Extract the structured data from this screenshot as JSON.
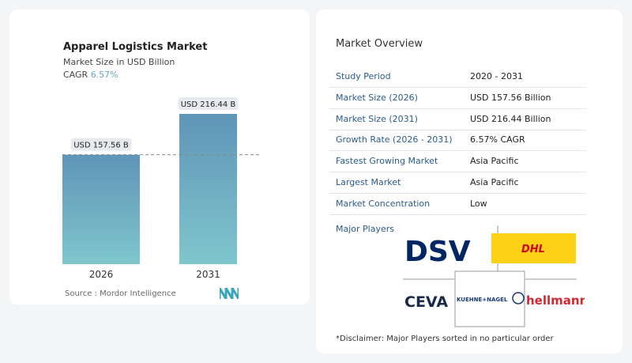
{
  "chart_data": {
    "type": "bar",
    "title": "Apparel Logistics Market",
    "subtitle": "Market Size in USD Billion",
    "cagr_label": "CAGR",
    "cagr_value": "6.57%",
    "categories": [
      "2026",
      "2031"
    ],
    "values": [
      157.56,
      216.44
    ],
    "data_labels": [
      "USD 157.56 B",
      "USD 216.44 B"
    ],
    "bar_color": "#5f95b8",
    "source": "Source :  Mordor Intelligence"
  },
  "overview": {
    "title": "Market Overview",
    "rows": [
      {
        "label": "Study Period",
        "value": "2020 - 2031"
      },
      {
        "label": "Market Size (2026)",
        "value": "USD 157.56 Billion"
      },
      {
        "label": "Market Size (2031)",
        "value": "USD 216.44 Billion"
      },
      {
        "label": "Growth Rate (2026 - 2031)",
        "value": "6.57% CAGR"
      },
      {
        "label": "Fastest Growing Market",
        "value": "Asia Pacific"
      },
      {
        "label": "Largest Market",
        "value": "Asia Pacific"
      },
      {
        "label": "Market Concentration",
        "value": "Low"
      }
    ],
    "major_players_label": "Major Players",
    "players": [
      "DSV",
      "DHL",
      "CEVA",
      "KUEHNE+NAGEL",
      "hellmann"
    ],
    "disclaimer": "*Disclaimer: Major Players sorted in no particular order"
  }
}
